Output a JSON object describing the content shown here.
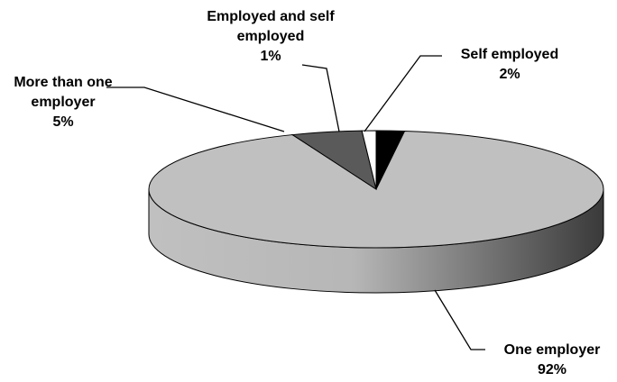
{
  "chart_data": {
    "type": "pie",
    "categories": [
      "Self employed",
      "One employer",
      "More than one employer",
      "Employed and self employed"
    ],
    "values": [
      2,
      92,
      5,
      1
    ],
    "value_labels": [
      "2%",
      "92%",
      "5%",
      "1%"
    ],
    "colors": [
      "#000000",
      "#c0c0c0",
      "#5a5a5a",
      "#ffffff"
    ]
  }
}
